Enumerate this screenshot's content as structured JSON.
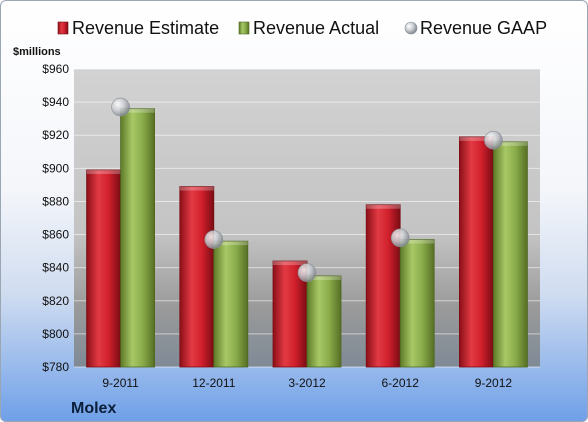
{
  "chart_data": {
    "type": "bar",
    "categories": [
      "9-2011",
      "12-2011",
      "3-2012",
      "6-2012",
      "9-2012"
    ],
    "series": [
      {
        "name": "Revenue Estimate",
        "kind": "bar",
        "color": "#c8202c",
        "values": [
          899,
          889,
          844,
          878,
          919
        ]
      },
      {
        "name": "Revenue Actual",
        "kind": "bar",
        "color": "#8aac4a",
        "values": [
          936,
          856,
          835,
          857,
          916
        ]
      },
      {
        "name": "Revenue GAAP",
        "kind": "marker",
        "color": "#b8bcc2",
        "values": [
          937,
          857,
          837,
          858,
          917
        ]
      }
    ],
    "ylabel": "$millions",
    "ylim": [
      780,
      960
    ],
    "yticks": [
      "$960",
      "$940",
      "$920",
      "$900",
      "$880",
      "$860",
      "$840",
      "$820",
      "$800",
      "$780"
    ],
    "ytick_values": [
      960,
      940,
      920,
      900,
      880,
      860,
      840,
      820,
      800,
      780
    ],
    "grid": true,
    "legend_position": "top"
  },
  "company_label": "Molex"
}
